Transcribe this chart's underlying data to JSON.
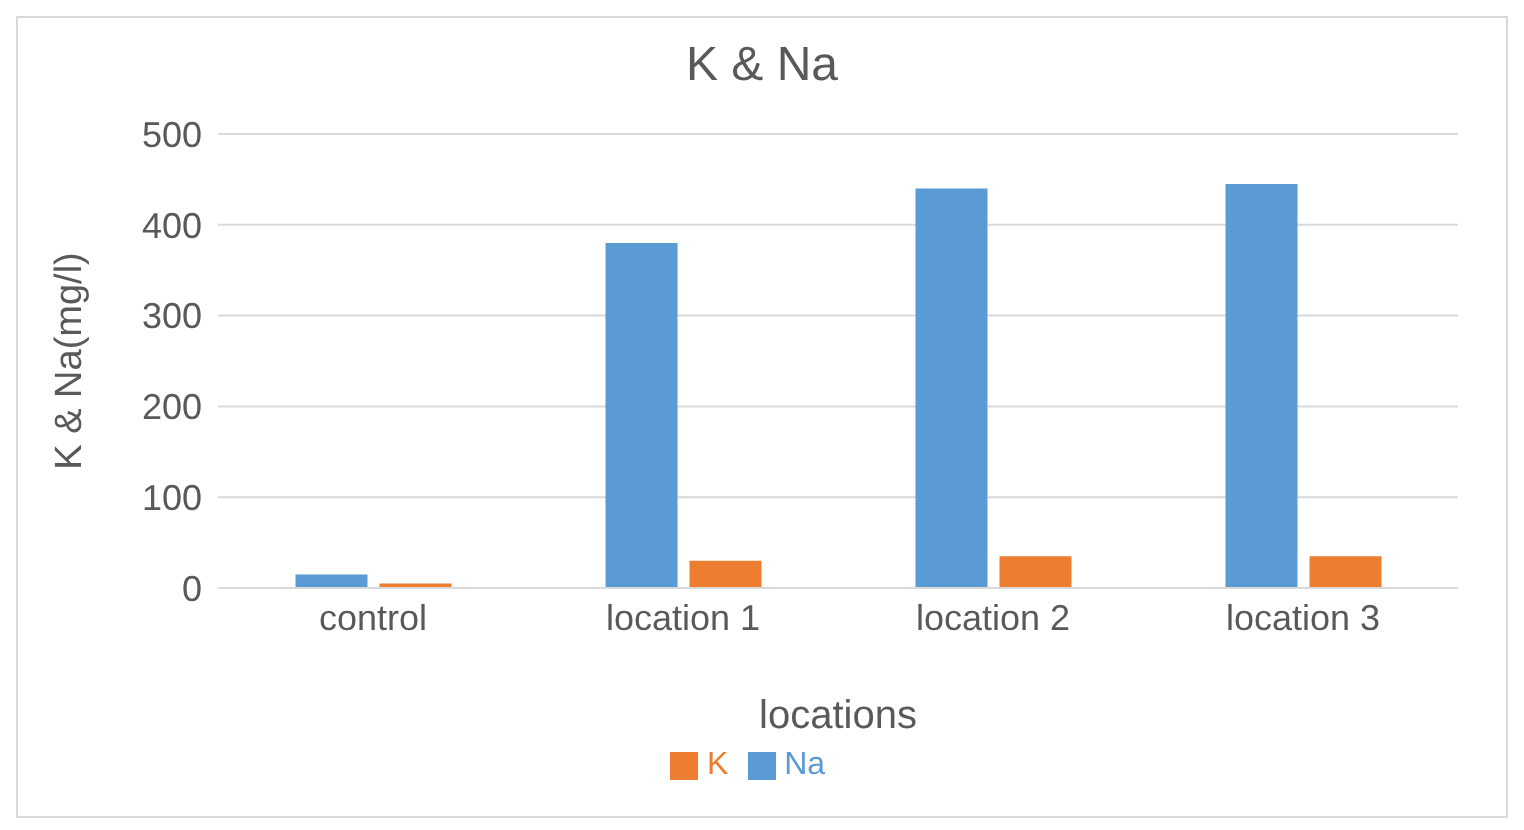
{
  "chart_data": {
    "type": "bar",
    "title": "K & Na",
    "xlabel": "locations",
    "ylabel": "K & Na(mg/l)",
    "categories": [
      "control",
      "location 1",
      "location 2",
      "location 3"
    ],
    "series": [
      {
        "name": "Na",
        "color": "#5b9bd5",
        "values": [
          15,
          380,
          440,
          445
        ]
      },
      {
        "name": "K",
        "color": "#ed7d31",
        "values": [
          5,
          30,
          35,
          35
        ]
      }
    ],
    "ylim": [
      0,
      500
    ],
    "yticks": [
      0,
      100,
      200,
      300,
      400,
      500
    ],
    "grid": "y",
    "legend": "bottom"
  }
}
